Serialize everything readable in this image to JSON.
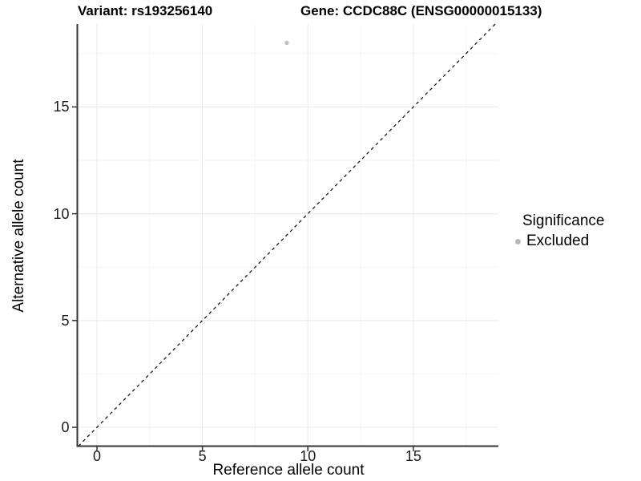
{
  "header": {
    "title_left": "Variant: rs193256140",
    "title_right": "Gene: CCDC88C (ENSG00000015133)"
  },
  "chart_data": {
    "type": "scatter",
    "title": "Variant: rs193256140   Gene: CCDC88C (ENSG00000015133)",
    "xlabel": "Reference allele count",
    "ylabel": "Alternative allele count",
    "xlim": [
      -0.93,
      19.03
    ],
    "ylim": [
      -0.88,
      18.88
    ],
    "x_major_ticks": [
      0,
      5,
      10,
      15
    ],
    "y_major_ticks": [
      0,
      5,
      10,
      15
    ],
    "x_minor_gridlines": [
      2.5,
      7.5,
      12.5,
      17.5
    ],
    "y_minor_gridlines": [
      2.5,
      7.5,
      12.5,
      17.5
    ],
    "grid": true,
    "series": [
      {
        "name": "Excluded",
        "color": "#c2c2c2",
        "points": [
          {
            "x": 9,
            "y": 18
          }
        ]
      }
    ],
    "reference_line": {
      "type": "identity",
      "equation": "y = x",
      "style": "dashed",
      "color": "#1a1a1a"
    },
    "legend": {
      "title": "Significance",
      "position": "right",
      "entries": [
        {
          "label": "Excluded",
          "color": "#b8b8b8"
        }
      ]
    },
    "colors": {
      "axis_line": "#333333",
      "tick_mark": "#333333",
      "major_grid": "#e8e8e8",
      "minor_grid": "#f4f4f4",
      "point": "#c2c2c2",
      "background": "#ffffff"
    }
  }
}
